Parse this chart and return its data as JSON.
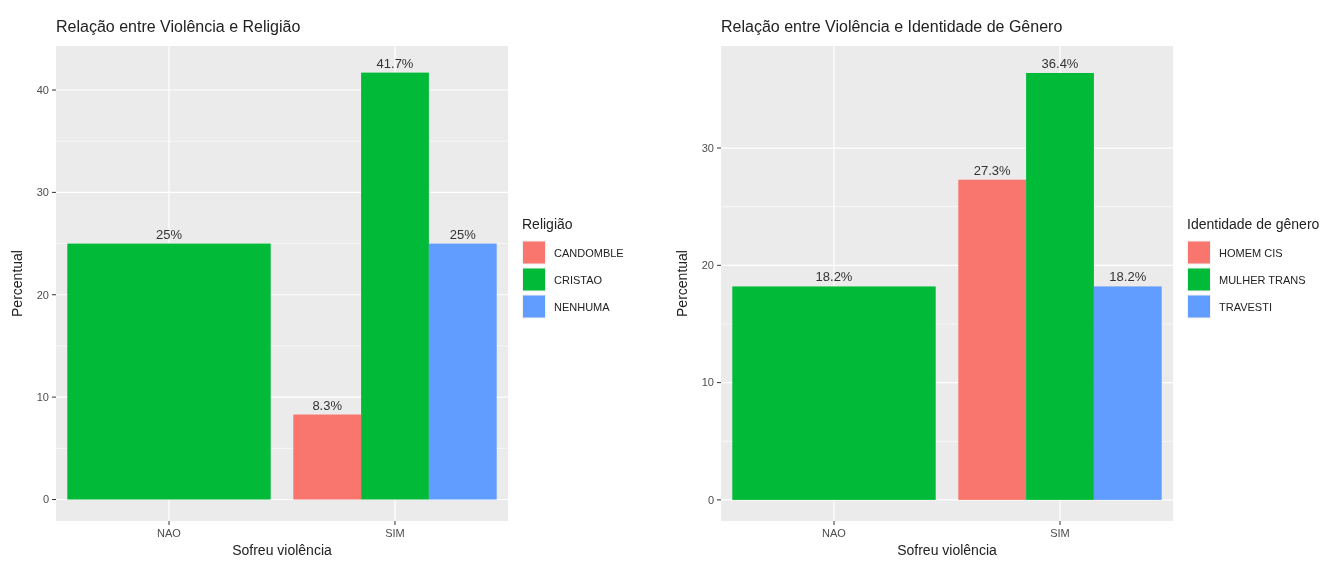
{
  "chart_data": [
    {
      "type": "bar",
      "title": "Relação entre Violência e Religião",
      "xlabel": "Sofreu violência",
      "ylabel": "Percentual",
      "legend_title": "Religião",
      "categories": [
        "NAO",
        "SIM"
      ],
      "ylim": [
        -2.1,
        44.3
      ],
      "yticks": [
        0,
        10,
        20,
        30,
        40
      ],
      "grid": true,
      "legend": "right",
      "series": [
        {
          "name": "CANDOMBLE",
          "color": "#f8766d",
          "values": [
            null,
            8.3
          ],
          "value_labels": [
            null,
            "8.3%"
          ]
        },
        {
          "name": "CRISTAO",
          "color": "#00ba38",
          "values": [
            25,
            41.7
          ],
          "value_labels": [
            "25%",
            "41.7%"
          ]
        },
        {
          "name": "NENHUMA",
          "color": "#619cff",
          "values": [
            null,
            25
          ],
          "value_labels": [
            null,
            "25%"
          ]
        }
      ]
    },
    {
      "type": "bar",
      "title": "Relação entre Violência e Identidade de Gênero",
      "xlabel": "Sofreu violência",
      "ylabel": "Percentual",
      "legend_title": "Identidade de gênero",
      "categories": [
        "NAO",
        "SIM"
      ],
      "ylim": [
        -1.8,
        38.7
      ],
      "yticks": [
        0,
        10,
        20,
        30
      ],
      "grid": true,
      "legend": "right",
      "series": [
        {
          "name": "HOMEM CIS",
          "color": "#f8766d",
          "values": [
            null,
            27.3
          ],
          "value_labels": [
            null,
            "27.3%"
          ]
        },
        {
          "name": "MULHER TRANS",
          "color": "#00ba38",
          "values": [
            18.2,
            36.4
          ],
          "value_labels": [
            "18.2%",
            "36.4%"
          ]
        },
        {
          "name": "TRAVESTI",
          "color": "#619cff",
          "values": [
            null,
            18.2
          ],
          "value_labels": [
            null,
            "18.2%"
          ]
        }
      ]
    }
  ]
}
